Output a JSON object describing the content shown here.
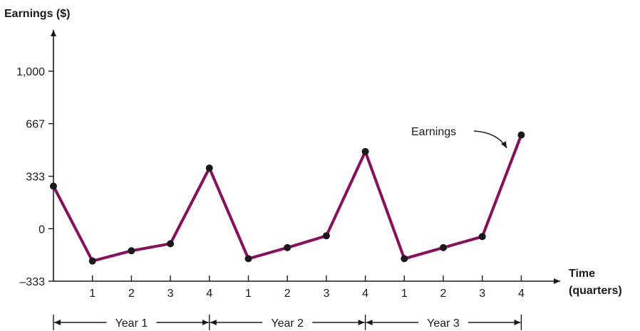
{
  "chart_data": {
    "type": "line",
    "ylabel": "Earnings ($)",
    "xlabel_line1": "Time",
    "xlabel_line2": "(quarters)",
    "y_ticks": [
      {
        "value": 1000,
        "label": "1,000"
      },
      {
        "value": 667,
        "label": "667"
      },
      {
        "value": 333,
        "label": "333"
      },
      {
        "value": 0,
        "label": "0"
      },
      {
        "value": -333,
        "label": "–333"
      }
    ],
    "ylim": [
      -333,
      1000
    ],
    "x_tick_labels": [
      "1",
      "2",
      "3",
      "4",
      "1",
      "2",
      "3",
      "4",
      "1",
      "2",
      "3",
      "4"
    ],
    "series": [
      {
        "x": [
          0,
          1,
          2,
          3,
          4,
          5,
          6,
          7,
          8,
          9,
          10,
          11,
          12
        ],
        "values": [
          270,
          -205,
          -140,
          -95,
          385,
          -190,
          -120,
          -45,
          490,
          -190,
          -120,
          -50,
          595
        ]
      }
    ],
    "annotation": "Earnings",
    "year_labels": [
      "Year 1",
      "Year 2",
      "Year 3"
    ],
    "colors": {
      "line": "#8b0e5a",
      "marker": "#1a1a1a",
      "axis": "#1a1a1a"
    }
  }
}
